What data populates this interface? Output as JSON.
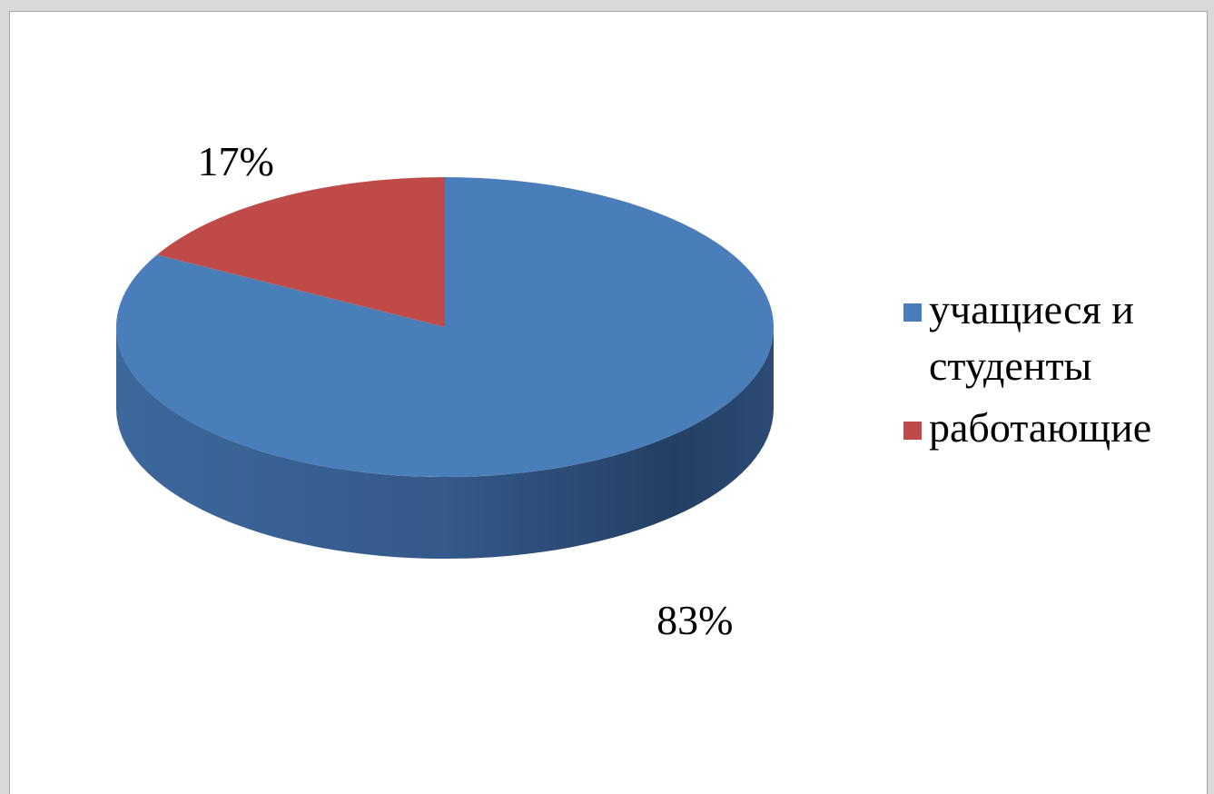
{
  "chart_data": {
    "type": "pie",
    "categories": [
      "учащиеся и студенты",
      "работающие"
    ],
    "values": [
      83,
      17
    ],
    "value_labels": [
      "83%",
      "17%"
    ],
    "colors": [
      "#4a7ebb",
      "#be4b48"
    ],
    "legend": "right",
    "three_d": true
  }
}
